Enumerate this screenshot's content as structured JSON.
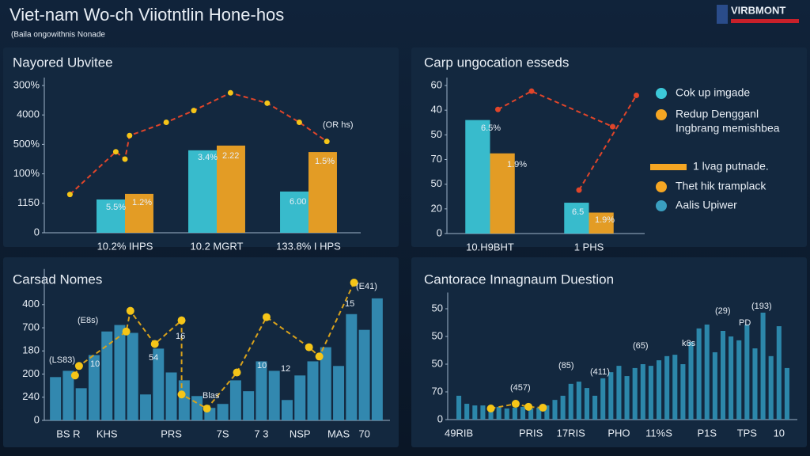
{
  "header": {
    "title": "Viet-nam Wo-ch Viiotntlin Hone-hos",
    "subtitle": "(Baila ongowithnis Nonade",
    "logo": "VIRBMONT"
  },
  "chart_data": [
    {
      "type": "bar",
      "title": "Nayored Ubvitee",
      "categories": [
        "10.2% IHPS",
        "10.2 MGRT",
        "133.8% I HPS"
      ],
      "series": [
        {
          "color": "#3cc8d8",
          "values": [
            1.13,
            2.8,
            1.4
          ]
        },
        {
          "color": "#f5a623",
          "values": [
            1.32,
            2.96,
            2.74
          ]
        }
      ],
      "ylim": [
        0,
        5
      ],
      "yticks": [
        {
          "value": 5,
          "label": "300%"
        },
        {
          "value": 4,
          "label": "4000"
        },
        {
          "value": 3,
          "label": "500%"
        },
        {
          "value": 2,
          "label": "100%"
        },
        {
          "value": 1,
          "label": "1150"
        },
        0
      ],
      "line": {
        "color": "#e0452a",
        "marker_color": "#f5c518",
        "x": [
          -0.6,
          -0.1,
          0,
          0.05,
          0.45,
          0.75,
          1.15,
          1.55,
          1.9,
          2.2
        ],
        "values": [
          1.3,
          2.75,
          2.5,
          3.3,
          3.75,
          4.15,
          4.75,
          4.4,
          3.75,
          3.1
        ]
      },
      "annotations": [
        "5.5%",
        "1.2%",
        "3.4%",
        "2.22",
        "6.00",
        "1.5%",
        "(OR hs)"
      ]
    },
    {
      "type": "bar",
      "title": "Carp ungocation esseds",
      "categories": [
        "10.H9BHT",
        "1 PHS"
      ],
      "series": [
        {
          "color": "#3cc8d8",
          "values": [
            4.6,
            1.25
          ]
        },
        {
          "color": "#f5a623",
          "values": [
            3.25,
            0.85
          ]
        }
      ],
      "ylim": [
        0,
        6
      ],
      "yticks": [
        {
          "value": 6,
          "label": "60"
        },
        {
          "value": 5,
          "label": "40"
        },
        {
          "value": 4,
          "label": "50"
        },
        {
          "value": 3,
          "label": "70"
        },
        {
          "value": 2,
          "label": "50"
        },
        {
          "value": 1,
          "label": "20"
        },
        0
      ],
      "line": {
        "color": "#e0452a",
        "marker_color": "#e0452a",
        "x": [
          0.08,
          0.42,
          1.24,
          null,
          0.9,
          1.48
        ],
        "values": [
          5.03,
          5.77,
          4.33,
          null,
          1.76,
          5.6
        ]
      },
      "annotations": [
        "6.5%",
        "1.9%",
        "6.5",
        "1.9%"
      ],
      "legend": [
        {
          "label": "Cok up imgade",
          "color": "#3cc8d8",
          "shape": "dot"
        },
        {
          "label": "Redup Dengganl",
          "color": "#f5a623",
          "shape": "dot"
        },
        {
          "label": "Ingbrang memishbea",
          "color": "#ffffff",
          "shape": "none"
        },
        {
          "label": "1 lvag putnade.",
          "color": "#f5a623",
          "shape": "bar"
        },
        {
          "label": "Thet hik tramplack",
          "color": "#f5a623",
          "shape": "dot"
        },
        {
          "label": "Aalis Upiwer",
          "color": "#3a9fc0",
          "shape": "dot"
        }
      ]
    },
    {
      "type": "bar",
      "title": "Carsad Nomes",
      "categories": [
        null,
        "BS R",
        null,
        null,
        "KHS",
        null,
        null,
        null,
        null,
        "PRS",
        null,
        null,
        null,
        "7S",
        null,
        null,
        "7 3",
        null,
        null,
        "NSP",
        null,
        null,
        "MAS",
        null,
        "70",
        null
      ],
      "series": [
        {
          "color": "#3590b8",
          "values": [
            1.87,
            2.14,
            1.39,
            2.82,
            3.84,
            4.12,
            3.78,
            1.12,
            3.1,
            2.07,
            1.73,
            1.05,
            0.54,
            0.71,
            1.73,
            1.26,
            2.55,
            2.14,
            0.88,
            1.94,
            2.55,
            3.16,
            2.35,
            4.59,
            3.91,
            5.27
          ]
        }
      ],
      "ylim": [
        0,
        6.2
      ],
      "yticks": [
        {
          "value": 5,
          "label": "400"
        },
        {
          "value": 4,
          "label": "700"
        },
        {
          "value": 3,
          "label": "180"
        },
        {
          "value": 2,
          "label": "200"
        },
        {
          "value": 1,
          "label": "240"
        },
        0
      ],
      "line": {
        "color": "#d9a21b",
        "marker_color": "#f5c518",
        "x": [
          1.52,
          1.83,
          5.5,
          5.82,
          7.72,
          9.8,
          9.8,
          11.77,
          14.1,
          16.4,
          19.7,
          20.5,
          23.2
        ],
        "values": [
          1.94,
          2.35,
          3.84,
          4.73,
          3.3,
          4.32,
          1.12,
          0.51,
          2.07,
          4.46,
          3.16,
          2.76,
          5.95
        ]
      },
      "annotations": [
        "(E8s)",
        "(LS83)",
        "(E41)",
        "16",
        "10",
        "15",
        "54",
        "10",
        "12",
        "Blas"
      ]
    },
    {
      "type": "bar",
      "title": "Cantorace Innagnaum Duestion",
      "categories": [
        "49RIB",
        null,
        null,
        null,
        null,
        null,
        null,
        null,
        null,
        "PRIS",
        null,
        null,
        null,
        null,
        "17RIS",
        null,
        null,
        null,
        null,
        null,
        "PHO",
        null,
        null,
        null,
        null,
        "11%S",
        null,
        null,
        null,
        null,
        null,
        "P1S",
        null,
        null,
        null,
        null,
        "TPS",
        null,
        null,
        null,
        "10",
        null
      ],
      "series": [
        {
          "color": "#2f8fb3",
          "values": [
            0.86,
            0.57,
            0.51,
            0.51,
            0.43,
            0.46,
            0.4,
            0.43,
            0.46,
            0.4,
            0.43,
            0.51,
            0.71,
            0.86,
            1.29,
            1.37,
            1.14,
            0.86,
            1.49,
            1.71,
            1.94,
            1.57,
            1.86,
            2,
            1.94,
            2.14,
            2.29,
            2.34,
            2,
            2.8,
            3.29,
            3.43,
            2.43,
            3.2,
            3,
            2.86,
            3.43,
            2.57,
            3.86,
            2.29,
            3.37,
            1.86
          ]
        }
      ],
      "ylim": [
        0,
        4.3
      ],
      "yticks": [
        {
          "value": 4,
          "label": "50"
        },
        {
          "value": 3,
          "label": "50"
        },
        {
          "value": 2,
          "label": "50"
        },
        {
          "value": 1,
          "label": "70"
        },
        0
      ],
      "line": {
        "color": "#d9a21b",
        "marker_color": "#f5c518",
        "x": [
          4,
          7.1,
          8.7,
          10.5
        ],
        "values": [
          0.4,
          0.57,
          0.46,
          0.43
        ]
      },
      "annotations": [
        "(457)",
        "(411)",
        "(65)",
        "(85)",
        "PD",
        "(193)",
        "(29)",
        "k8s"
      ]
    }
  ]
}
